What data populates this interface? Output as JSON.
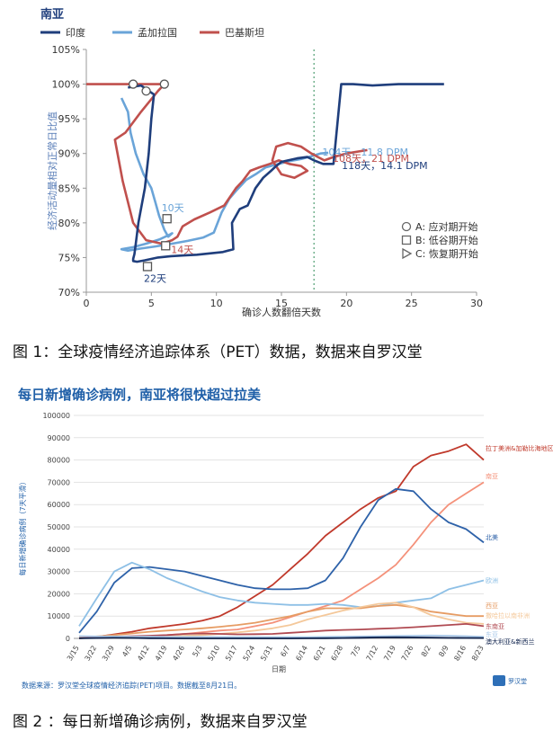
{
  "captions": {
    "fig1": "图 1：全球疫情经济追踪体系（PET）数据，数据来自罗汉堂",
    "fig2": "图 2 ：每日新增确诊病例，数据来自罗汉堂"
  },
  "chart_data": [
    {
      "type": "line",
      "title": "南亚",
      "xlabel": "确诊人数翻倍天数",
      "ylabel": "经济活动量相对正常日比值",
      "xlim": [
        0,
        30
      ],
      "ylim": [
        70,
        105
      ],
      "xticks": [
        0,
        5,
        10,
        15,
        20,
        25,
        30
      ],
      "yticks": [
        70,
        75,
        80,
        85,
        90,
        95,
        100,
        105
      ],
      "ytick_suffix": "%",
      "vline_x": 17.5,
      "legend_markers": [
        {
          "marker": "circle",
          "label": "A: 应对期开始"
        },
        {
          "marker": "square",
          "label": "B: 低谷期开始"
        },
        {
          "marker": "triangle",
          "label": "C: 恢复期开始"
        }
      ],
      "series": [
        {
          "name": "印度",
          "color": "#1f3e7c",
          "x": [
            3.2,
            4.2,
            5.2,
            5.0,
            4.8,
            4.5,
            4.0,
            3.8,
            3.7,
            3.6,
            3.6,
            3.9,
            4.5,
            5.5,
            6.5,
            7.5,
            8.5,
            9.5,
            10.5,
            11.3,
            11.2,
            11.8,
            12.4,
            13.0,
            13.6,
            14.2,
            14.6,
            15.0,
            15.5,
            16.2,
            17.0,
            17.5,
            18.2,
            19.0,
            19.6,
            20.5,
            22.0,
            24.0,
            27.5
          ],
          "y": [
            99.5,
            99.8,
            98.5,
            95.0,
            90.0,
            85.0,
            80.0,
            77.0,
            75.5,
            74.8,
            74.5,
            74.4,
            74.6,
            75.0,
            75.2,
            75.3,
            75.4,
            75.6,
            75.8,
            76.2,
            80.0,
            82.0,
            82.5,
            85.0,
            86.5,
            87.5,
            88.2,
            88.8,
            89.0,
            89.3,
            89.5,
            89.0,
            88.5,
            88.5,
            100.0,
            100.0,
            99.8,
            100.0,
            100.0
          ],
          "annotations": [
            {
              "x": 4.7,
              "y": 73.7,
              "marker": "square",
              "label": "22天"
            },
            {
              "x": 19.5,
              "y": 88.3,
              "label": "118天，14.1 DPM"
            }
          ]
        },
        {
          "name": "孟加拉国",
          "color": "#6aa4d8",
          "x": [
            2.7,
            3.2,
            3.4,
            3.8,
            4.4,
            5.0,
            5.3,
            5.6,
            6.0,
            6.3,
            6.6,
            6.4,
            5.6,
            4.6,
            3.6,
            2.7,
            3.2,
            4.2,
            5.3,
            6.6,
            7.8,
            9.0,
            9.8,
            10.4,
            11.0,
            11.6,
            12.3,
            13.0,
            13.8,
            14.8,
            15.6,
            16.5,
            17.3,
            18.0,
            18.6
          ],
          "y": [
            98.0,
            96.0,
            93.0,
            90.0,
            87.0,
            85.0,
            83.0,
            81.0,
            79.0,
            78.0,
            78.5,
            78.3,
            77.6,
            77.0,
            76.5,
            76.2,
            76.0,
            76.3,
            76.6,
            77.0,
            77.4,
            77.9,
            78.6,
            81.5,
            83.5,
            84.8,
            86.2,
            87.0,
            88.0,
            88.5,
            88.9,
            89.2,
            89.6,
            90.0,
            90.1
          ],
          "annotations": [
            {
              "x": 4.6,
              "y": 99.0,
              "marker": "circle"
            },
            {
              "x": 6.2,
              "y": 80.6,
              "marker": "square",
              "label": "10天"
            },
            {
              "x": 18.0,
              "y": 90.2,
              "label": "104天，11.8 DPM"
            }
          ]
        },
        {
          "name": "巴基斯坦",
          "color": "#c0504d",
          "x": [
            0.0,
            3.0,
            5.0,
            6.0,
            5.5,
            4.2,
            3.0,
            2.2,
            2.8,
            3.6,
            4.6,
            5.8,
            6.6,
            7.0,
            7.4,
            8.3,
            9.5,
            10.6,
            11.5,
            12.0,
            12.6,
            13.3,
            14.1,
            14.8,
            15.6,
            16.5,
            17.0,
            16.0,
            15.0,
            14.3,
            14.6,
            15.5,
            16.5,
            17.3,
            17.8,
            18.3,
            19.0,
            20.0,
            21.6
          ],
          "y": [
            100.0,
            100.0,
            100.0,
            100.0,
            99.0,
            96.0,
            93.0,
            92.0,
            86.0,
            80.0,
            77.5,
            77.0,
            77.5,
            78.0,
            79.5,
            80.5,
            81.5,
            82.5,
            85.0,
            86.0,
            87.5,
            88.0,
            88.5,
            89.0,
            88.5,
            88.2,
            87.5,
            86.5,
            87.0,
            89.0,
            91.0,
            91.5,
            91.0,
            90.0,
            89.5,
            89.0,
            89.5,
            90.0,
            90.5
          ],
          "annotations": [
            {
              "x": 3.6,
              "y": 100.0,
              "marker": "circle"
            },
            {
              "x": 6.0,
              "y": 100.0,
              "marker": "circle"
            },
            {
              "x": 6.1,
              "y": 76.7,
              "marker": "square",
              "label": "14天"
            },
            {
              "x": 18.8,
              "y": 89.3,
              "label": "108天，21 DPM"
            }
          ]
        }
      ]
    },
    {
      "type": "line",
      "title": "每日新增确诊病例，南亚将很快超过拉美",
      "xlabel": "日期",
      "ylabel": "每日新增确诊病例（7天平滑）",
      "ylim": [
        0,
        100000
      ],
      "yticks": [
        0,
        10000,
        20000,
        30000,
        40000,
        50000,
        60000,
        70000,
        80000,
        90000,
        100000
      ],
      "categories": [
        "3/15",
        "3/22",
        "3/29",
        "4/5",
        "4/12",
        "4/19",
        "4/26",
        "5/3",
        "5/10",
        "5/17",
        "5/24",
        "5/31",
        "6/7",
        "6/14",
        "6/21",
        "6/28",
        "7/5",
        "7/12",
        "7/19",
        "7/26",
        "8/2",
        "8/9",
        "8/16",
        "8/23"
      ],
      "source": "数据来源：罗汉堂全球疫情经济追踪(PET)项目。数据截至8月21日。",
      "logo": "罗汉堂",
      "series": [
        {
          "name": "拉丁美洲&加勒比海地区",
          "color": "#c0392b",
          "values": [
            100,
            700,
            1800,
            3000,
            4500,
            5500,
            6500,
            8000,
            10000,
            14000,
            19000,
            24000,
            31000,
            38000,
            46000,
            52000,
            58000,
            63000,
            66000,
            77000,
            82000,
            84000,
            87000,
            80000
          ]
        },
        {
          "name": "南亚",
          "color": "#f4917a",
          "values": [
            200,
            300,
            600,
            800,
            1000,
            1500,
            2000,
            2800,
            3500,
            4000,
            5500,
            7000,
            9500,
            12000,
            14500,
            17000,
            22000,
            27000,
            33000,
            42000,
            52000,
            60000,
            65000,
            70000
          ]
        },
        {
          "name": "北美",
          "color": "#2e62a9",
          "values": [
            2500,
            12000,
            25000,
            31500,
            32000,
            31000,
            30000,
            28000,
            26000,
            24000,
            22500,
            22000,
            22000,
            22500,
            26000,
            36000,
            50000,
            62000,
            67000,
            66000,
            58000,
            52000,
            49000,
            43000
          ]
        },
        {
          "name": "欧洲",
          "color": "#8ec0e6",
          "values": [
            5500,
            18000,
            30000,
            34000,
            31000,
            27000,
            24000,
            21000,
            18500,
            17000,
            16000,
            15500,
            15000,
            15000,
            15500,
            15000,
            14000,
            14500,
            16000,
            17000,
            18000,
            22000,
            24000,
            26000
          ]
        },
        {
          "name": "西亚",
          "color": "#e69c64",
          "values": [
            300,
            900,
            1500,
            2200,
            3000,
            3500,
            4000,
            4500,
            5200,
            6000,
            7000,
            8500,
            10000,
            12000,
            13500,
            13500,
            13500,
            14500,
            15000,
            14000,
            12000,
            11000,
            10000,
            10000
          ]
        },
        {
          "name": "撒哈拉以南非洲",
          "color": "#f4c89a",
          "values": [
            100,
            200,
            300,
            400,
            600,
            800,
            1200,
            1500,
            2000,
            2700,
            3500,
            4500,
            6000,
            8500,
            10500,
            12500,
            14000,
            15500,
            16000,
            14000,
            10500,
            8500,
            7000,
            6500
          ]
        },
        {
          "name": "东南亚",
          "color": "#b04a52",
          "values": [
            100,
            400,
            800,
            1000,
            1200,
            1500,
            2000,
            2200,
            2000,
            1800,
            1900,
            2000,
            2500,
            3000,
            3500,
            3800,
            4000,
            4300,
            4600,
            5000,
            5500,
            6000,
            6500,
            5500
          ]
        },
        {
          "name": "东亚",
          "color": "#a9c8e8",
          "values": [
            1000,
            900,
            900,
            800,
            800,
            700,
            700,
            700,
            650,
            600,
            600,
            600,
            600,
            600,
            700,
            800,
            900,
            1000,
            1100,
            1200,
            1300,
            1200,
            1000,
            700
          ]
        },
        {
          "name": "澳大利亚&新西兰",
          "color": "#0b1f4a",
          "values": [
            50,
            150,
            250,
            200,
            100,
            50,
            20,
            20,
            10,
            10,
            10,
            10,
            20,
            40,
            80,
            150,
            300,
            450,
            500,
            450,
            350,
            250,
            200,
            150
          ]
        }
      ]
    }
  ]
}
